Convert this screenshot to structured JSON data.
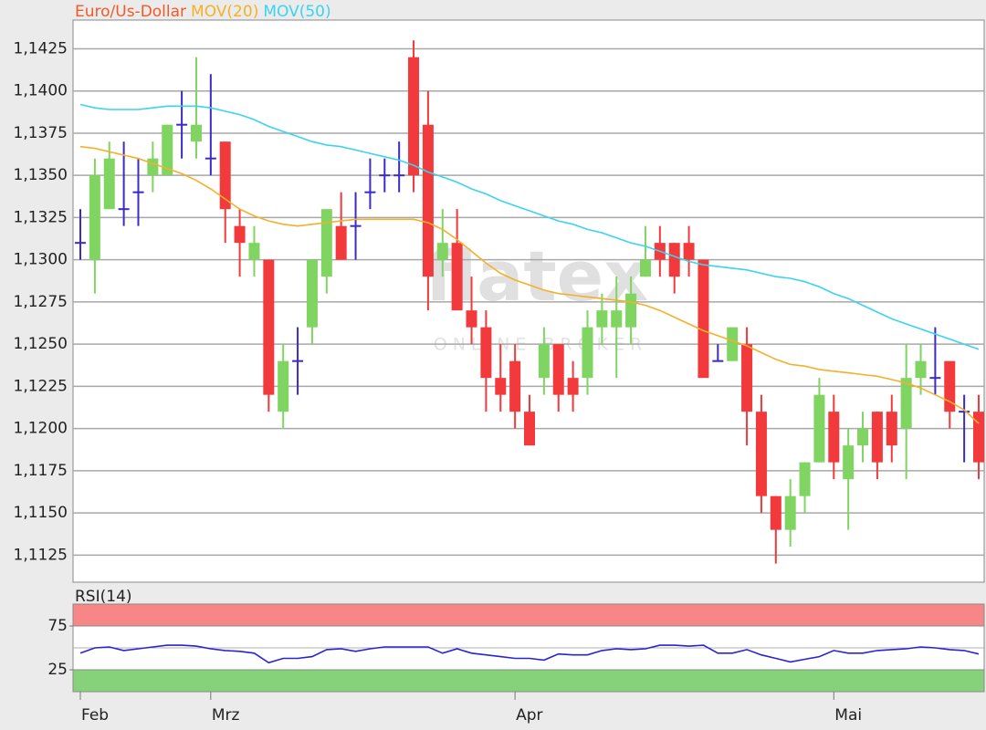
{
  "chart_data": [
    {
      "type": "candlestick",
      "watermark": {
        "logo": "flatex",
        "tagline": "ONLINE BROKER"
      },
      "categories": [
        "Feb",
        null,
        null,
        null,
        null,
        null,
        null,
        null,
        null,
        "Mrz",
        null,
        null,
        null,
        null,
        null,
        null,
        null,
        null,
        null,
        null,
        null,
        null,
        null,
        null,
        null,
        null,
        null,
        null,
        null,
        null,
        "Apr",
        null,
        null,
        null,
        null,
        null,
        null,
        null,
        null,
        null,
        null,
        null,
        null,
        null,
        null,
        null,
        null,
        null,
        null,
        null,
        null,
        null,
        "Mai",
        null,
        null,
        null,
        null,
        null,
        null,
        null,
        null,
        null,
        null
      ],
      "ohlc": {
        "name": "Euro/Us-Dollar",
        "title_color": "#f05a28",
        "up_color": "#7fd462",
        "down_color": "#f2393c",
        "doji_color": "#3b2bc8",
        "open": [
          1.131,
          1.13,
          1.133,
          1.133,
          1.134,
          1.135,
          1.135,
          1.138,
          1.137,
          1.136,
          1.137,
          1.132,
          1.13,
          1.13,
          1.121,
          1.124,
          1.126,
          1.129,
          1.132,
          1.132,
          1.134,
          1.135,
          1.135,
          1.142,
          1.138,
          1.13,
          1.131,
          1.127,
          1.126,
          1.123,
          1.124,
          1.121,
          1.123,
          1.125,
          1.123,
          1.123,
          1.126,
          1.126,
          1.126,
          1.129,
          1.131,
          1.131,
          1.131,
          1.13,
          1.124,
          1.124,
          1.125,
          1.121,
          1.116,
          1.114,
          1.116,
          1.118,
          1.121,
          1.117,
          1.119,
          1.121,
          1.121,
          1.12,
          1.123,
          1.123,
          1.124,
          1.121,
          1.121
        ],
        "high": [
          1.133,
          1.136,
          1.137,
          1.137,
          1.136,
          1.137,
          1.138,
          1.14,
          1.142,
          1.141,
          1.137,
          1.133,
          1.132,
          1.13,
          1.125,
          1.126,
          1.13,
          1.133,
          1.134,
          1.134,
          1.136,
          1.136,
          1.137,
          1.143,
          1.14,
          1.133,
          1.133,
          1.129,
          1.127,
          1.125,
          1.125,
          1.122,
          1.126,
          1.125,
          1.124,
          1.127,
          1.128,
          1.129,
          1.129,
          1.132,
          1.132,
          1.131,
          1.132,
          1.13,
          1.125,
          1.126,
          1.126,
          1.122,
          1.116,
          1.117,
          1.118,
          1.123,
          1.122,
          1.12,
          1.121,
          1.121,
          1.122,
          1.125,
          1.125,
          1.126,
          1.124,
          1.122,
          1.122
        ],
        "low": [
          1.13,
          1.128,
          1.133,
          1.132,
          1.132,
          1.134,
          1.135,
          1.136,
          1.136,
          1.135,
          1.131,
          1.129,
          1.129,
          1.121,
          1.12,
          1.122,
          1.125,
          1.128,
          1.13,
          1.13,
          1.133,
          1.134,
          1.134,
          1.134,
          1.127,
          1.129,
          1.128,
          1.125,
          1.121,
          1.121,
          1.12,
          1.119,
          1.122,
          1.121,
          1.121,
          1.122,
          1.125,
          1.123,
          1.125,
          1.129,
          1.129,
          1.128,
          1.129,
          1.123,
          1.124,
          1.124,
          1.119,
          1.115,
          1.112,
          1.113,
          1.115,
          1.118,
          1.117,
          1.114,
          1.118,
          1.117,
          1.118,
          1.117,
          1.122,
          1.122,
          1.12,
          1.118,
          1.117
        ],
        "close": [
          1.131,
          1.135,
          1.136,
          1.133,
          1.134,
          1.136,
          1.138,
          1.138,
          1.138,
          1.136,
          1.133,
          1.131,
          1.131,
          1.122,
          1.124,
          1.124,
          1.13,
          1.133,
          1.13,
          1.132,
          1.134,
          1.135,
          1.135,
          1.135,
          1.129,
          1.131,
          1.127,
          1.126,
          1.123,
          1.122,
          1.121,
          1.119,
          1.125,
          1.122,
          1.122,
          1.126,
          1.127,
          1.127,
          1.128,
          1.13,
          1.13,
          1.129,
          1.13,
          1.123,
          1.124,
          1.126,
          1.121,
          1.116,
          1.114,
          1.116,
          1.118,
          1.122,
          1.118,
          1.119,
          1.12,
          1.118,
          1.119,
          1.123,
          1.124,
          1.123,
          1.121,
          1.121,
          1.118
        ]
      },
      "series": [
        {
          "name": "MOV(20)",
          "color": "#f5b02a",
          "values": [
            1.1367,
            1.1366,
            1.1364,
            1.1362,
            1.136,
            1.1357,
            1.1354,
            1.1351,
            1.1347,
            1.1342,
            1.1336,
            1.133,
            1.1326,
            1.1323,
            1.1321,
            1.132,
            1.1321,
            1.1322,
            1.1323,
            1.1324,
            1.1324,
            1.1324,
            1.1324,
            1.1324,
            1.1322,
            1.1318,
            1.1312,
            1.1305,
            1.1298,
            1.1292,
            1.1288,
            1.1285,
            1.1282,
            1.128,
            1.1279,
            1.1278,
            1.1277,
            1.1276,
            1.1275,
            1.1273,
            1.127,
            1.1266,
            1.1262,
            1.1258,
            1.1255,
            1.1252,
            1.1249,
            1.1245,
            1.1241,
            1.1238,
            1.1237,
            1.1235,
            1.1234,
            1.1233,
            1.1232,
            1.1231,
            1.1229,
            1.1227,
            1.1224,
            1.122,
            1.1216,
            1.1211,
            1.1203
          ]
        },
        {
          "name": "MOV(50)",
          "color": "#3ad3f0",
          "values": [
            1.1392,
            1.139,
            1.1389,
            1.1389,
            1.1389,
            1.139,
            1.1391,
            1.1391,
            1.1391,
            1.139,
            1.1388,
            1.1386,
            1.1383,
            1.1379,
            1.1376,
            1.1373,
            1.137,
            1.1368,
            1.1367,
            1.1365,
            1.1363,
            1.1361,
            1.1359,
            1.1356,
            1.1352,
            1.1349,
            1.1346,
            1.1342,
            1.1339,
            1.1335,
            1.1332,
            1.1329,
            1.1326,
            1.1323,
            1.1321,
            1.1318,
            1.1316,
            1.1313,
            1.131,
            1.1308,
            1.1305,
            1.1302,
            1.1299,
            1.1297,
            1.1296,
            1.1295,
            1.1294,
            1.1292,
            1.129,
            1.1289,
            1.1287,
            1.1284,
            1.128,
            1.1277,
            1.1273,
            1.1269,
            1.1265,
            1.1262,
            1.1259,
            1.1256,
            1.1253,
            1.125,
            1.1247
          ]
        }
      ],
      "ylim": [
        1.1109,
        1.1442
      ],
      "yticks": [
        {
          "value": 1.1125,
          "label": "1,1125"
        },
        {
          "value": 1.115,
          "label": "1,1150"
        },
        {
          "value": 1.1175,
          "label": "1,1175"
        },
        {
          "value": 1.12,
          "label": "1,1200"
        },
        {
          "value": 1.1225,
          "label": "1,1225"
        },
        {
          "value": 1.125,
          "label": "1,1250"
        },
        {
          "value": 1.1275,
          "label": "1,1275"
        },
        {
          "value": 1.13,
          "label": "1,1300"
        },
        {
          "value": 1.1325,
          "label": "1,1325"
        },
        {
          "value": 1.135,
          "label": "1,1350"
        },
        {
          "value": 1.1375,
          "label": "1,1375"
        },
        {
          "value": 1.14,
          "label": "1,1400"
        },
        {
          "value": 1.1425,
          "label": "1,1425"
        }
      ],
      "grid": true
    },
    {
      "type": "line",
      "series": [
        {
          "name": "RSI(14)",
          "color": "#2a22d6",
          "values": [
            44,
            50,
            51,
            47,
            49,
            51,
            53,
            53,
            52,
            49,
            47,
            46,
            44,
            33,
            38,
            38,
            40,
            48,
            49,
            46,
            49,
            51,
            51,
            51,
            51,
            44,
            49,
            44,
            42,
            40,
            38,
            38,
            36,
            43,
            42,
            42,
            47,
            49,
            48,
            49,
            53,
            53,
            52,
            53,
            44,
            44,
            48,
            42,
            38,
            34,
            37,
            40,
            47,
            44,
            44,
            47,
            48,
            49,
            51,
            50,
            48,
            47,
            43
          ]
        }
      ],
      "zones": [
        {
          "from": 75,
          "to": 100,
          "color": "#f78787"
        },
        {
          "from": 0,
          "to": 25,
          "color": "#85d27a"
        }
      ],
      "ylim": [
        0,
        100
      ],
      "yticks": [
        25,
        75
      ]
    }
  ]
}
